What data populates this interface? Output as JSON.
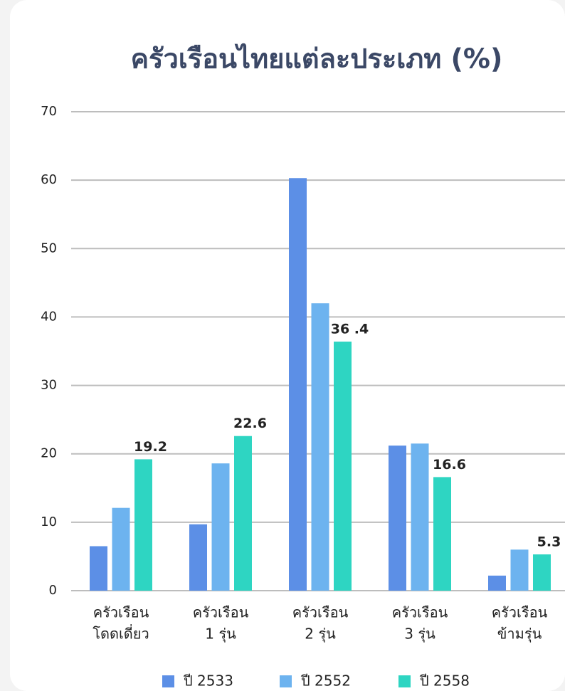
{
  "chart_data": {
    "type": "bar",
    "title": "ครัวเรือนไทยแต่ละประเภท (%)",
    "categories": [
      [
        "ครัวเรือน",
        "โดดเดี่ยว"
      ],
      [
        "ครัวเรือน",
        "1 รุ่น"
      ],
      [
        "ครัวเรือน",
        "2 รุ่น"
      ],
      [
        "ครัวเรือน",
        "3 รุ่น"
      ],
      [
        "ครัวเรือน",
        "ข้ามรุ่น"
      ]
    ],
    "series": [
      {
        "name": "ปี 2533",
        "color": "#5c8fe6",
        "values": [
          6.5,
          9.7,
          60.3,
          21.2,
          2.2
        ]
      },
      {
        "name": "ปี 2552",
        "color": "#6db3ef",
        "values": [
          12.1,
          18.6,
          42.0,
          21.5,
          6.0
        ]
      },
      {
        "name": "ปี 2558",
        "color": "#2ed5c2",
        "values": [
          19.2,
          22.6,
          36.4,
          16.6,
          5.3
        ],
        "value_labels": [
          "19.2",
          "22.6",
          "36 .4",
          "16.6",
          "5.3"
        ]
      }
    ],
    "ylim": [
      0,
      70
    ],
    "yticks": [
      0,
      10,
      20,
      30,
      40,
      50,
      60,
      70
    ],
    "grid": true,
    "legend": "bottom"
  }
}
